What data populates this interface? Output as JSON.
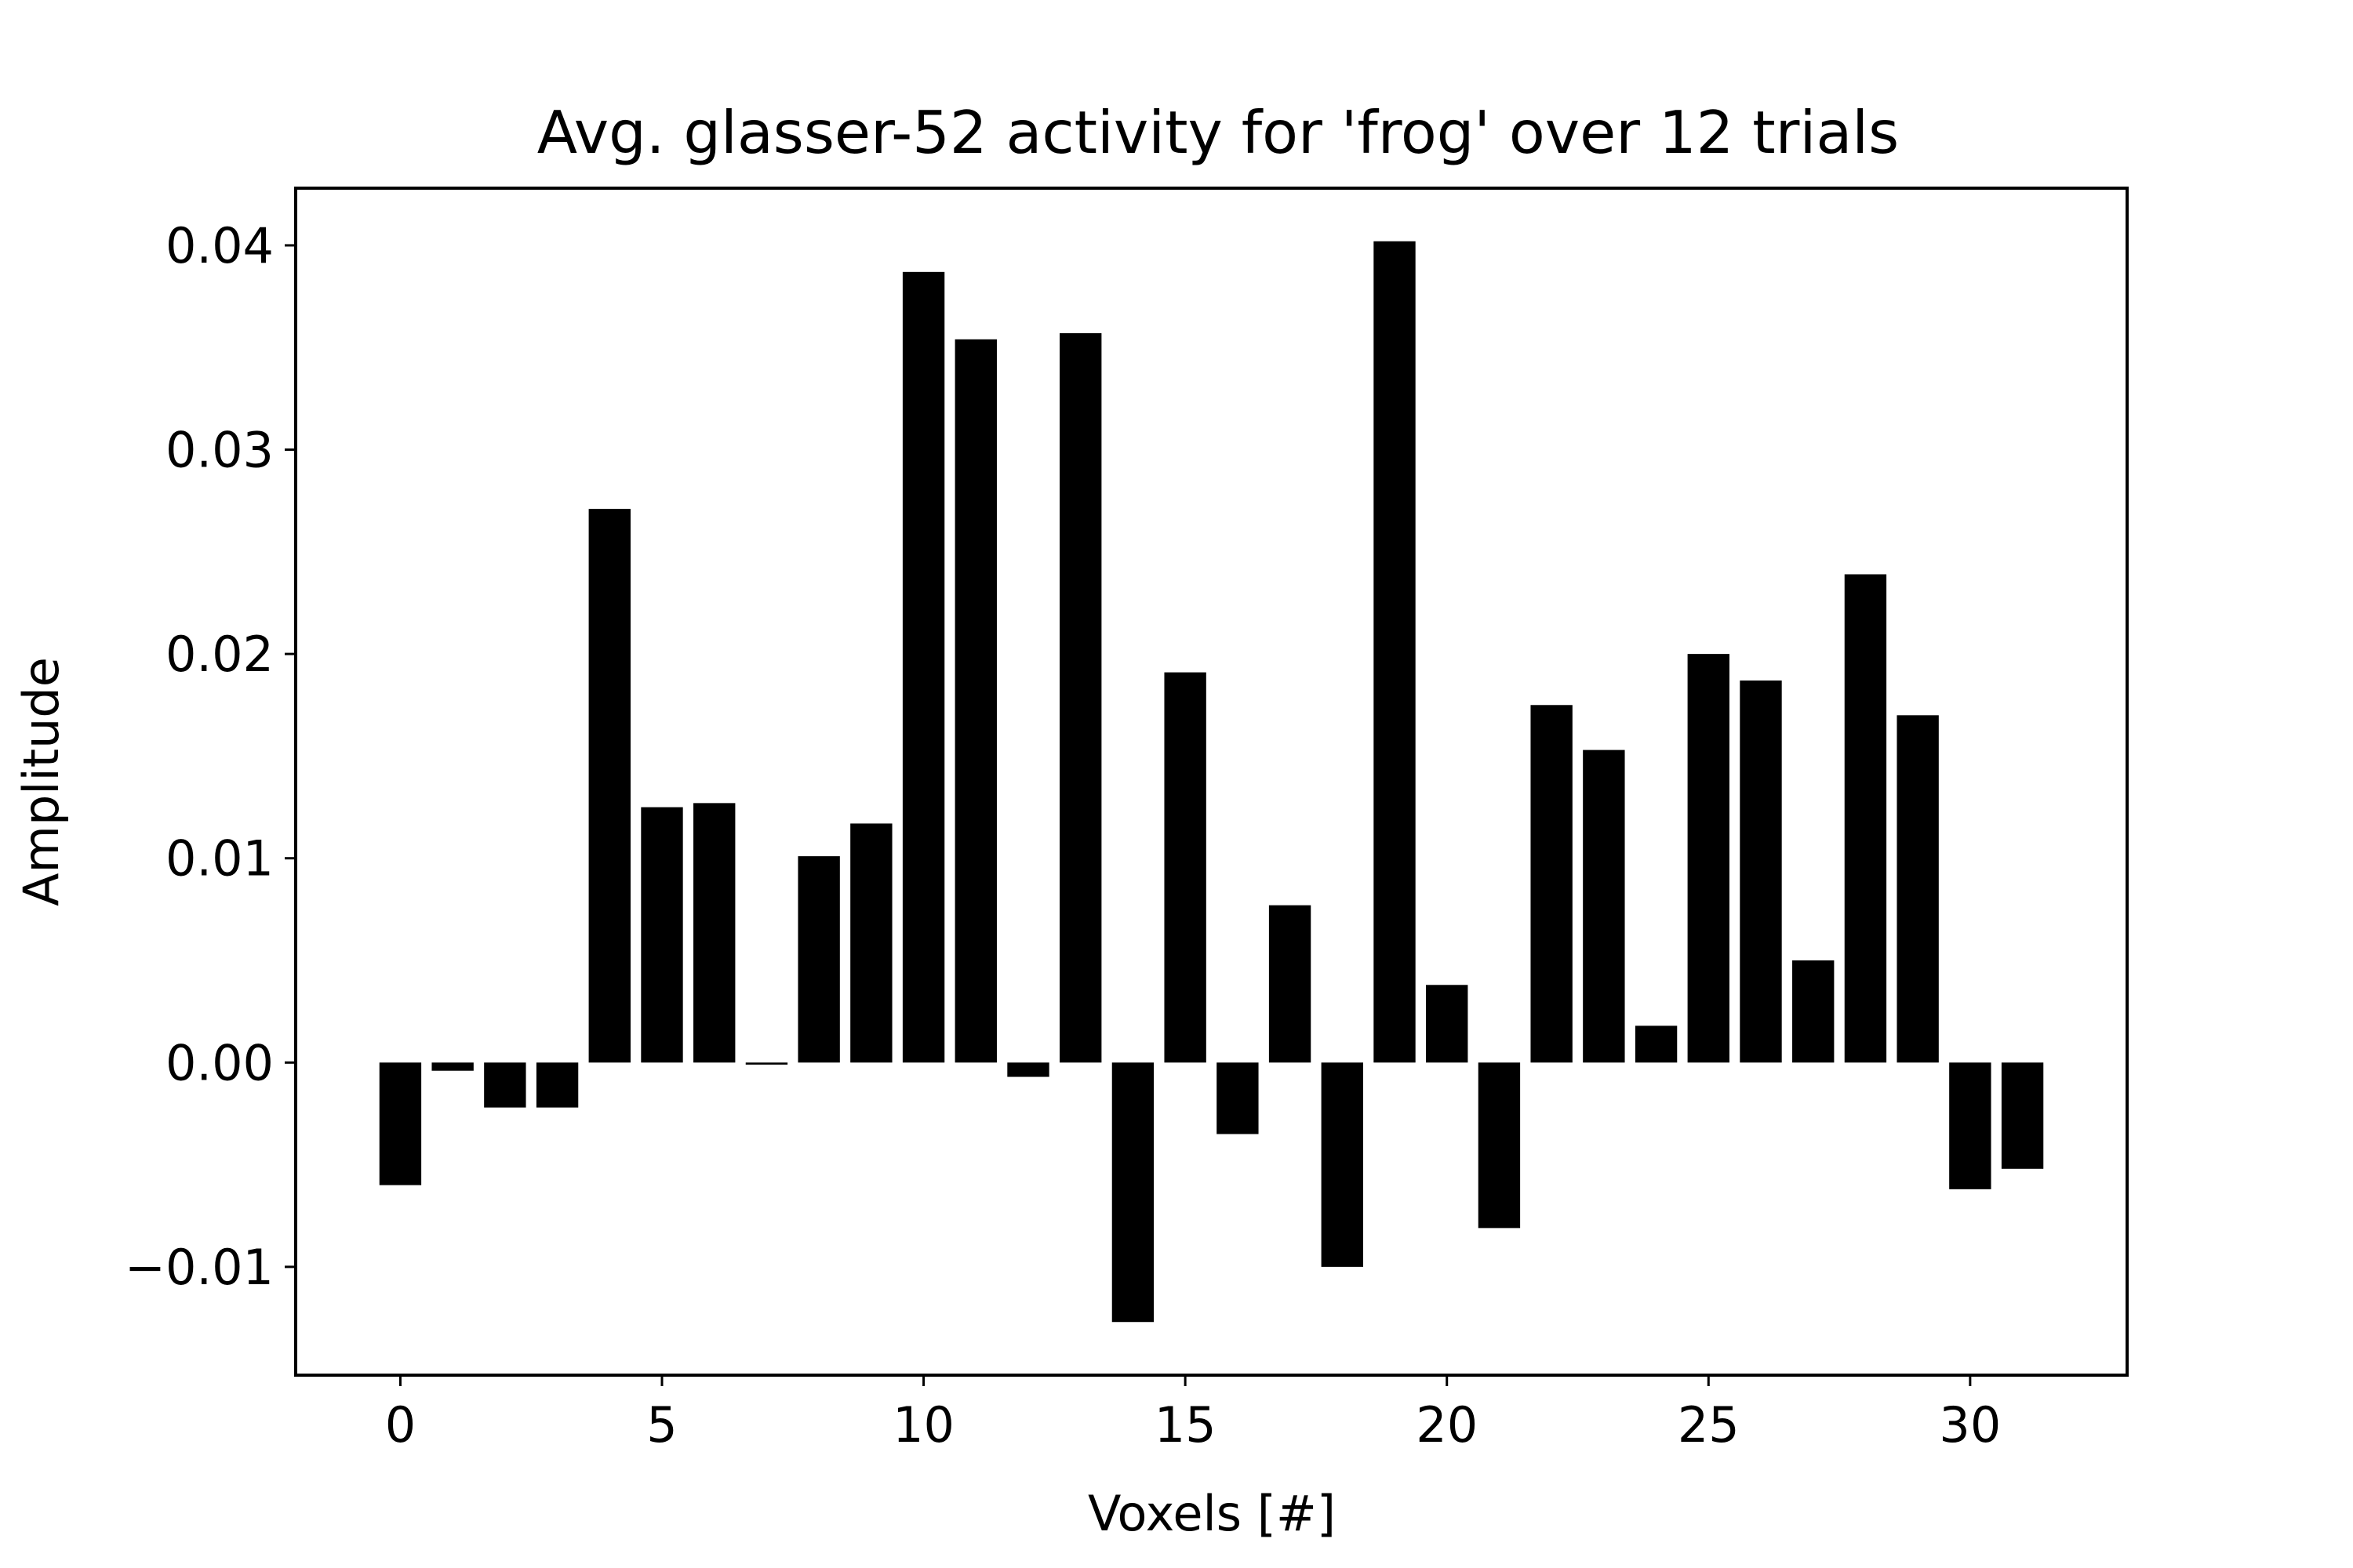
{
  "chart_data": {
    "type": "bar",
    "title": "Avg. glasser-52 activity for 'frog' over 12 trials",
    "xlabel": "Voxels [#]",
    "ylabel": "Amplitude",
    "x": [
      0,
      1,
      2,
      3,
      4,
      5,
      6,
      7,
      8,
      9,
      10,
      11,
      12,
      13,
      14,
      15,
      16,
      17,
      18,
      19,
      20,
      21,
      22,
      23,
      24,
      25,
      26,
      27,
      28,
      29,
      30,
      31
    ],
    "values": [
      -0.006,
      -0.0004,
      -0.0022,
      -0.0022,
      0.0271,
      0.0125,
      0.0127,
      -0.0001,
      0.0101,
      0.0117,
      0.0387,
      0.0354,
      -0.0007,
      0.0357,
      -0.0127,
      0.0191,
      -0.0035,
      0.0077,
      -0.01,
      0.0402,
      0.0038,
      -0.0081,
      0.0175,
      0.0153,
      0.0018,
      0.02,
      0.0187,
      0.005,
      0.0239,
      0.017,
      -0.0062,
      -0.0052
    ],
    "bar_color": "#000000",
    "xlim": [
      -2,
      33
    ],
    "ylim": [
      -0.0153,
      0.0428
    ],
    "xticks": [
      0,
      5,
      10,
      15,
      20,
      25,
      30
    ],
    "xtick_labels": [
      "0",
      "5",
      "10",
      "15",
      "20",
      "25",
      "30"
    ],
    "yticks": [
      -0.01,
      0.0,
      0.01,
      0.02,
      0.03,
      0.04
    ],
    "ytick_labels": [
      "−0.01",
      "0.00",
      "0.01",
      "0.02",
      "0.03",
      "0.04"
    ],
    "grid": false,
    "legend": "none"
  }
}
